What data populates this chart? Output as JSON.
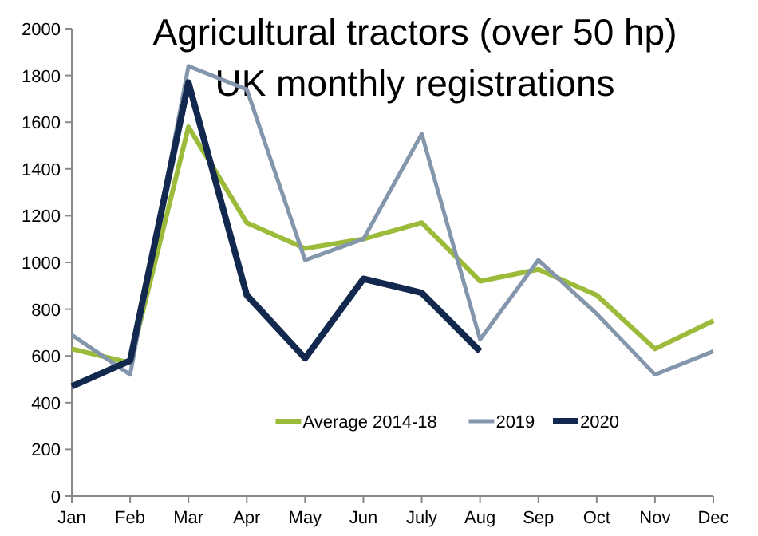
{
  "chart_data": {
    "type": "line",
    "title": "Agricultural tractors (over 50 hp)\nUK monthly registrations",
    "categories": [
      "Jan",
      "Feb",
      "Mar",
      "Apr",
      "May",
      "Jun",
      "July",
      "Aug",
      "Sep",
      "Oct",
      "Nov",
      "Dec"
    ],
    "series": [
      {
        "name": "Average 2014-18",
        "color": "#9dbb3a",
        "values": [
          630,
          570,
          1580,
          1170,
          1060,
          1100,
          1170,
          920,
          970,
          860,
          630,
          750
        ]
      },
      {
        "name": "2019",
        "color": "#8496ab",
        "values": [
          690,
          520,
          1840,
          1740,
          1010,
          1100,
          1550,
          670,
          1010,
          780,
          520,
          620
        ]
      },
      {
        "name": "2020",
        "color": "#13284e",
        "values": [
          470,
          580,
          1770,
          860,
          590,
          930,
          870,
          620,
          null,
          null,
          null,
          null
        ]
      }
    ],
    "ylim": [
      0,
      2000
    ],
    "yticks": [
      0,
      200,
      400,
      600,
      800,
      1000,
      1200,
      1400,
      1600,
      1800,
      2000
    ],
    "grid": false,
    "legend": "bottom",
    "marker": "none",
    "line_style": "solid"
  }
}
